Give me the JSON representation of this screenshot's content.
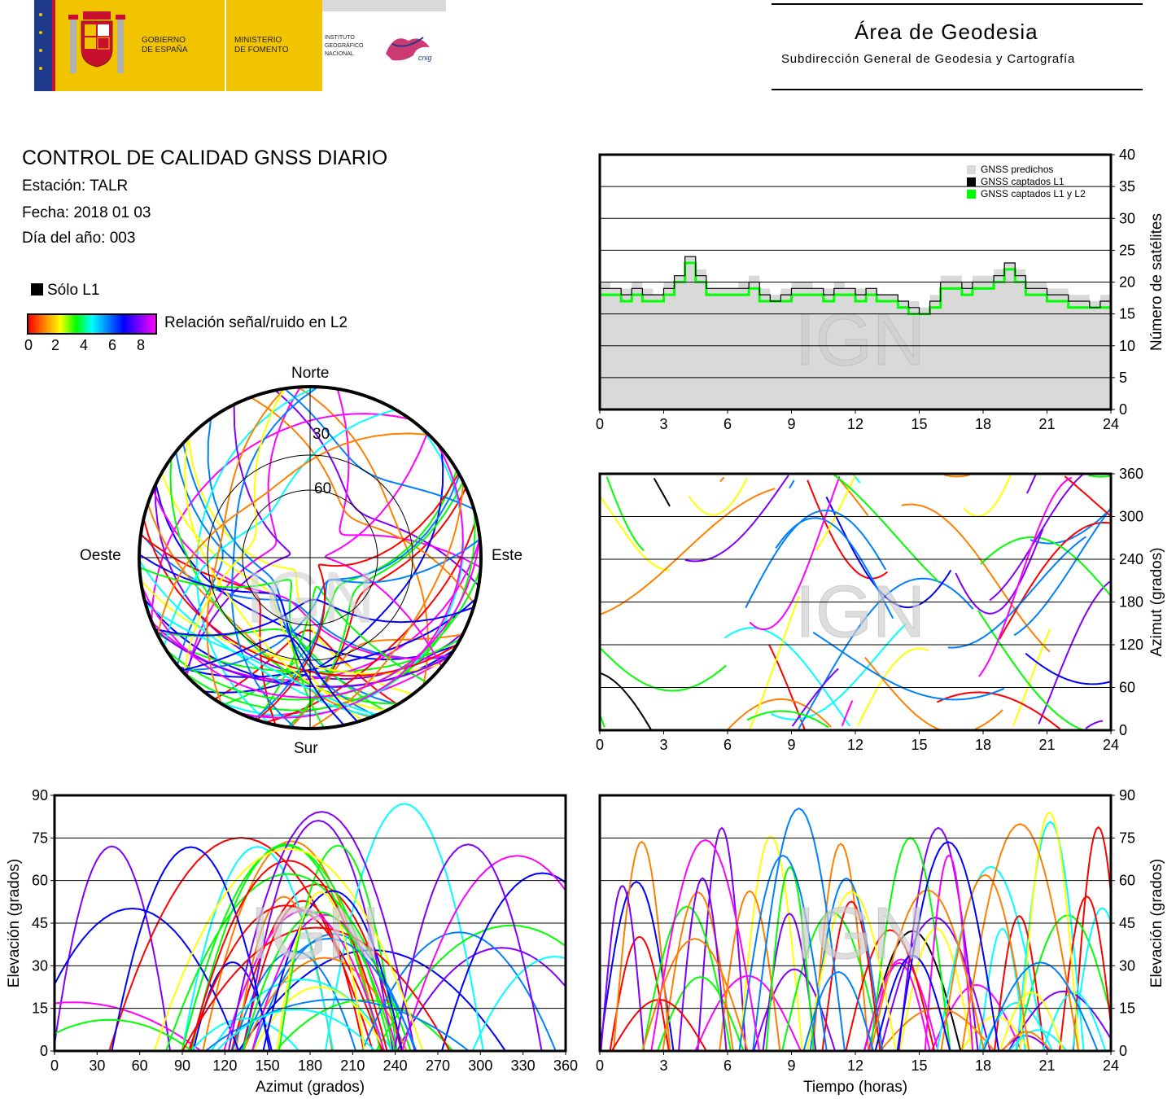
{
  "header": {
    "gobierno_label": "GOBIERNO\nDE ESPAÑA",
    "ministerio_label": "MINISTERIO\nDE FOMENTO",
    "ign_label": "INSTITUTO\nGEOGRÁFICO\nNACIONAL",
    "cnig_label": "cnig",
    "area_title": "Área de Geodesia",
    "area_subtitle": "Subdirección General de Geodesia y Cartografía",
    "colors": {
      "flag_yellow": "#f2c400",
      "flag_red": "#c8102e",
      "eu_blue": "#1f3a8a"
    }
  },
  "report": {
    "title": "CONTROL DE CALIDAD GNSS DIARIO",
    "station": "Estación: TALR",
    "date": "Fecha: 2018 01 03",
    "doy": "Día del año: 003"
  },
  "legend": {
    "l1_only": "Sólo L1",
    "snr_label": "Relación señal/ruido en L2",
    "snr_ticks": [
      "0",
      "2",
      "4",
      "6",
      "8"
    ],
    "snr_colors": [
      "#ff0000",
      "#ff8000",
      "#ffff00",
      "#00ff00",
      "#00ffff",
      "#0080ff",
      "#0000ff",
      "#8000ff",
      "#ff00ff"
    ]
  },
  "watermark": "IGN",
  "chart_data": [
    {
      "id": "skyplot",
      "type": "scatter",
      "projection": "polar",
      "direction_labels": {
        "north": "Norte",
        "south": "Sur",
        "west": "Oeste",
        "east": "Este"
      },
      "ring_labels": [
        "30",
        "60"
      ],
      "elevation_rings": [
        30,
        60
      ],
      "description": "Satellite tracks (azimuth/elevation) colored by L2 SNR"
    },
    {
      "id": "satellites",
      "type": "area",
      "ylabel": "Número de satélites",
      "xlim": [
        0,
        24
      ],
      "ylim": [
        0,
        40
      ],
      "x_ticks": [
        "0",
        "3",
        "6",
        "9",
        "12",
        "15",
        "18",
        "21",
        "24"
      ],
      "y_ticks": [
        "0",
        "5",
        "10",
        "15",
        "20",
        "25",
        "30",
        "35",
        "40"
      ],
      "legend": [
        "GNSS predichos",
        "GNSS captados L1",
        "GNSS captados L1 y L2"
      ],
      "series_colors": [
        "#d9d9d9",
        "#000000",
        "#00ff00"
      ],
      "x": [
        0,
        0.5,
        1,
        1.5,
        2,
        2.5,
        3,
        3.5,
        4,
        4.5,
        5,
        5.5,
        6,
        6.5,
        7,
        7.5,
        8,
        8.5,
        9,
        9.5,
        10,
        10.5,
        11,
        11.5,
        12,
        12.5,
        13,
        13.5,
        14,
        14.5,
        15,
        15.5,
        16,
        16.5,
        17,
        17.5,
        18,
        18.5,
        19,
        19.5,
        20,
        20.5,
        21,
        21.5,
        22,
        22.5,
        23,
        23.5,
        24
      ],
      "series": [
        {
          "name": "GNSS predichos",
          "values": [
            20,
            19,
            19,
            20,
            19,
            18,
            20,
            21,
            24,
            22,
            19,
            19,
            19,
            20,
            21,
            19,
            18,
            19,
            20,
            20,
            19,
            19,
            20,
            19,
            19,
            19,
            18,
            18,
            17,
            17,
            16,
            18,
            21,
            21,
            20,
            21,
            21,
            22,
            23,
            22,
            20,
            20,
            19,
            19,
            18,
            18,
            17,
            18,
            18
          ]
        },
        {
          "name": "GNSS captados L1",
          "values": [
            19,
            19,
            18,
            19,
            18,
            18,
            19,
            21,
            24,
            21,
            19,
            19,
            19,
            19,
            20,
            18,
            17,
            18,
            19,
            19,
            19,
            18,
            19,
            19,
            18,
            19,
            18,
            18,
            17,
            16,
            15,
            17,
            20,
            20,
            19,
            20,
            20,
            21,
            23,
            21,
            19,
            19,
            18,
            18,
            17,
            17,
            16,
            17,
            18
          ]
        },
        {
          "name": "GNSS captados L1 y L2",
          "values": [
            18,
            18,
            17,
            18,
            17,
            17,
            18,
            20,
            23,
            20,
            18,
            18,
            18,
            18,
            19,
            17,
            17,
            17,
            18,
            18,
            18,
            17,
            18,
            18,
            17,
            18,
            17,
            17,
            16,
            15,
            15,
            16,
            19,
            19,
            18,
            19,
            19,
            20,
            22,
            20,
            18,
            18,
            17,
            17,
            16,
            16,
            16,
            16,
            17
          ]
        }
      ]
    },
    {
      "id": "azimuth_time",
      "type": "scatter",
      "ylabel": "Azimut (grados)",
      "xlim": [
        0,
        24
      ],
      "ylim": [
        0,
        360
      ],
      "x_ticks": [
        "0",
        "3",
        "6",
        "9",
        "12",
        "15",
        "18",
        "21",
        "24"
      ],
      "y_ticks": [
        "0",
        "60",
        "120",
        "180",
        "240",
        "300",
        "360"
      ]
    },
    {
      "id": "elevation_azimuth",
      "type": "scatter",
      "xlabel": "Azimut (grados)",
      "ylabel": "Elevación (grados)",
      "xlim": [
        0,
        360
      ],
      "ylim": [
        0,
        90
      ],
      "x_ticks": [
        "0",
        "30",
        "60",
        "90",
        "120",
        "150",
        "180",
        "210",
        "240",
        "270",
        "300",
        "330",
        "360"
      ],
      "y_ticks": [
        "0",
        "15",
        "30",
        "45",
        "60",
        "75",
        "90"
      ]
    },
    {
      "id": "elevation_time",
      "type": "scatter",
      "xlabel": "Tiempo (horas)",
      "ylabel": "Elevación (grados)",
      "xlim": [
        0,
        24
      ],
      "ylim": [
        0,
        90
      ],
      "x_ticks": [
        "0",
        "3",
        "6",
        "9",
        "12",
        "15",
        "18",
        "21",
        "24"
      ],
      "y_ticks": [
        "0",
        "15",
        "30",
        "45",
        "60",
        "75",
        "90"
      ]
    }
  ]
}
